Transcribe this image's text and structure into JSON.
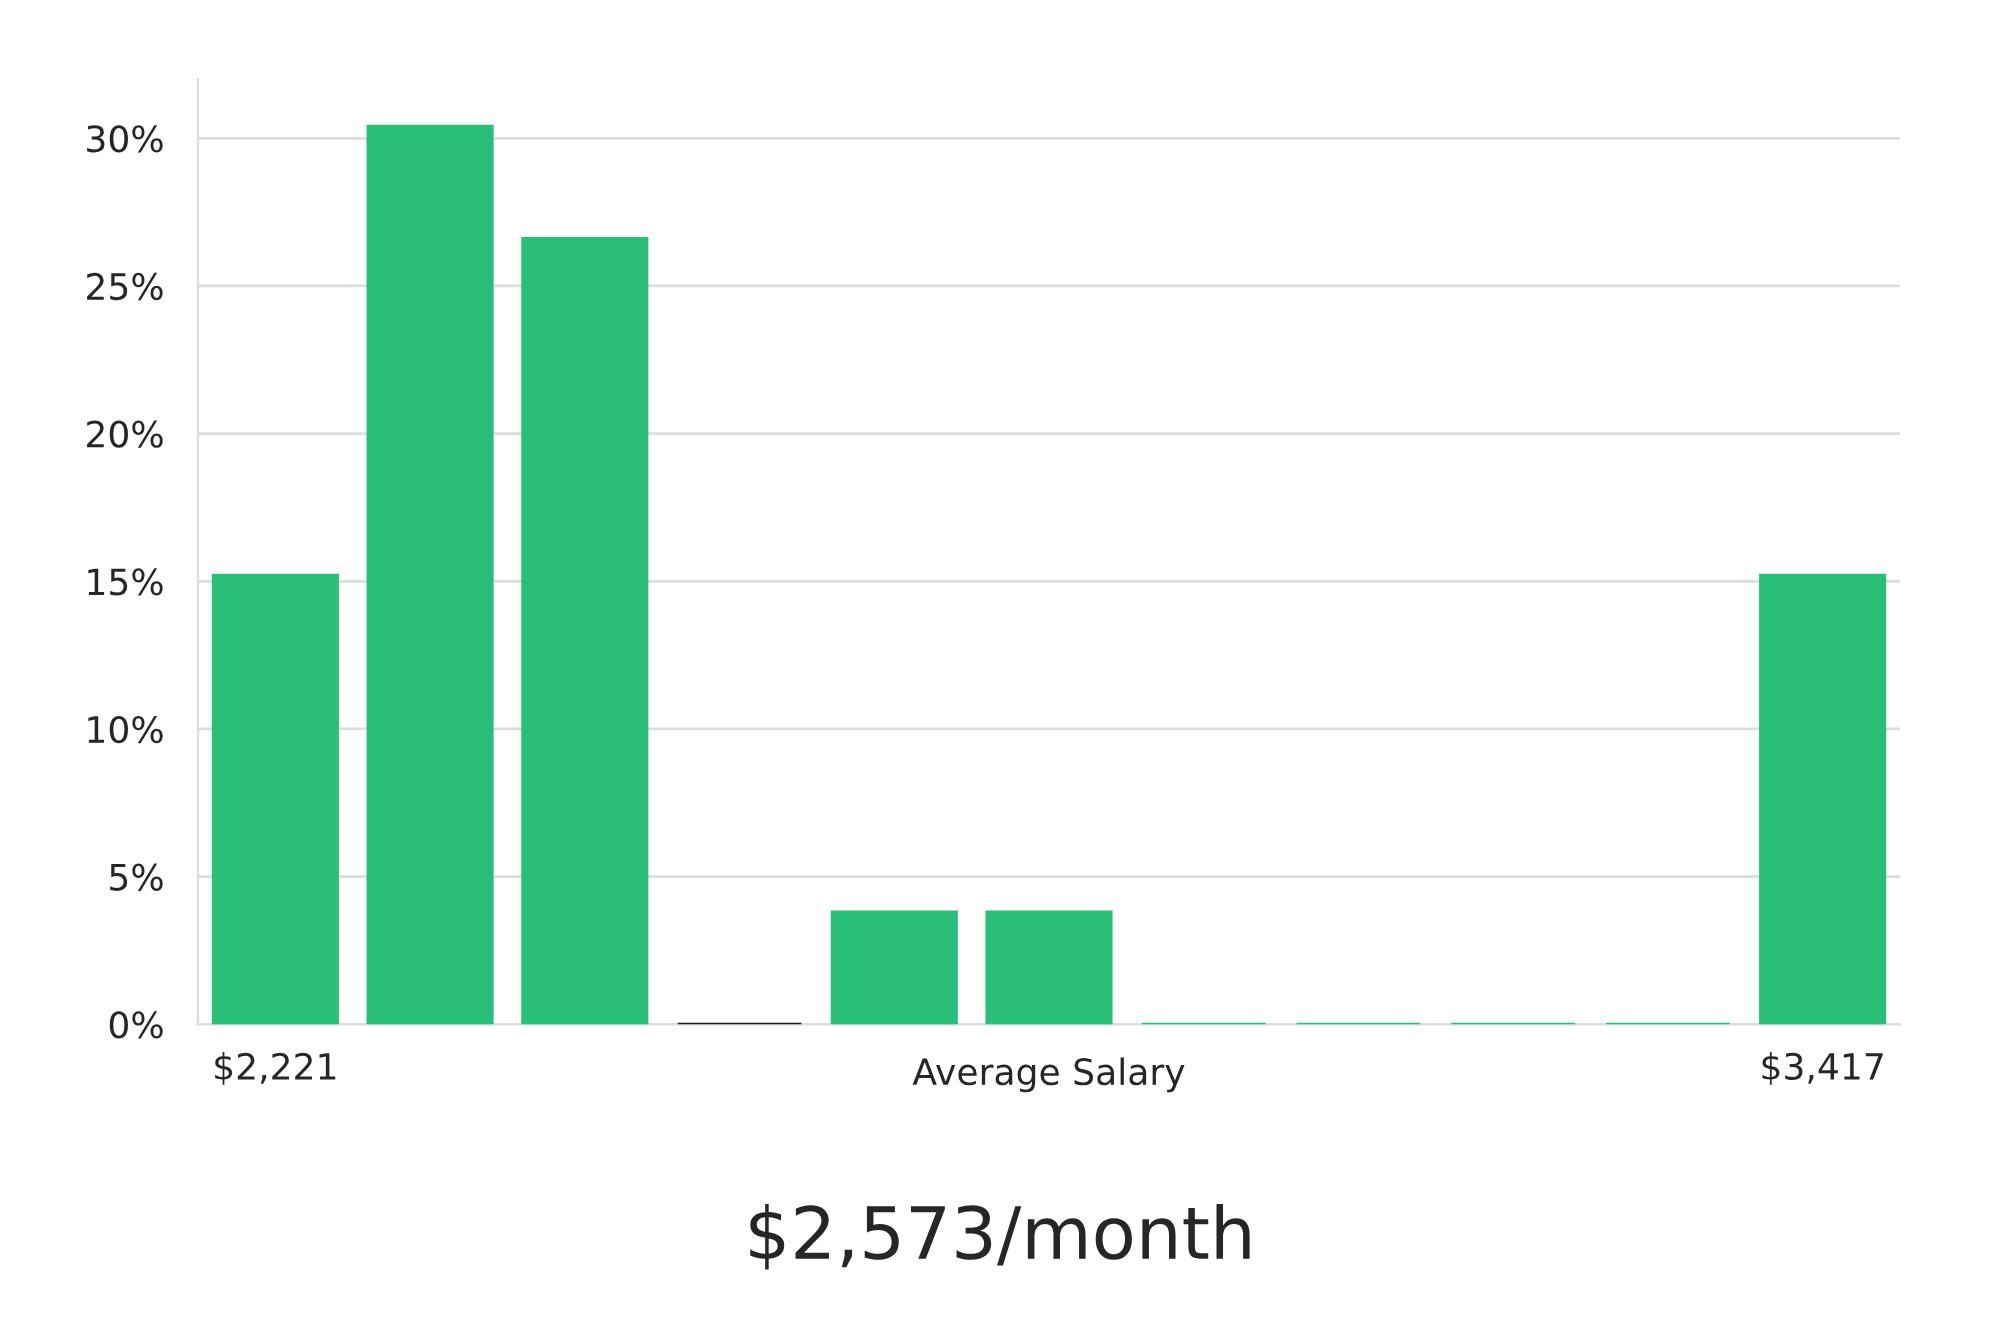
{
  "chart_data": {
    "type": "bar",
    "categories": [
      "$2,221",
      null,
      null,
      null,
      null,
      null,
      null,
      null,
      null,
      null,
      "$3,417"
    ],
    "values": [
      15.2,
      30.4,
      26.6,
      0,
      3.8,
      3.8,
      0,
      0,
      0,
      0,
      15.2
    ],
    "colors": [
      "#2abf77",
      "#2abf77",
      "#2abf77",
      "#222222",
      "#2abf77",
      "#2abf77",
      "#2abf77",
      "#2abf77",
      "#2abf77",
      "#2abf77",
      "#2abf77"
    ],
    "xlabel": "Average Salary",
    "ylim": [
      0,
      32
    ],
    "yticks": [
      {
        "value": 0,
        "label": "0%"
      },
      {
        "value": 5,
        "label": "5%"
      },
      {
        "value": 10,
        "label": "10%"
      },
      {
        "value": 15,
        "label": "15%"
      },
      {
        "value": 20,
        "label": "20%"
      },
      {
        "value": 25,
        "label": "25%"
      },
      {
        "value": 30,
        "label": "30%"
      }
    ],
    "grid": "y",
    "annotations": [
      "$2,573/month"
    ]
  }
}
